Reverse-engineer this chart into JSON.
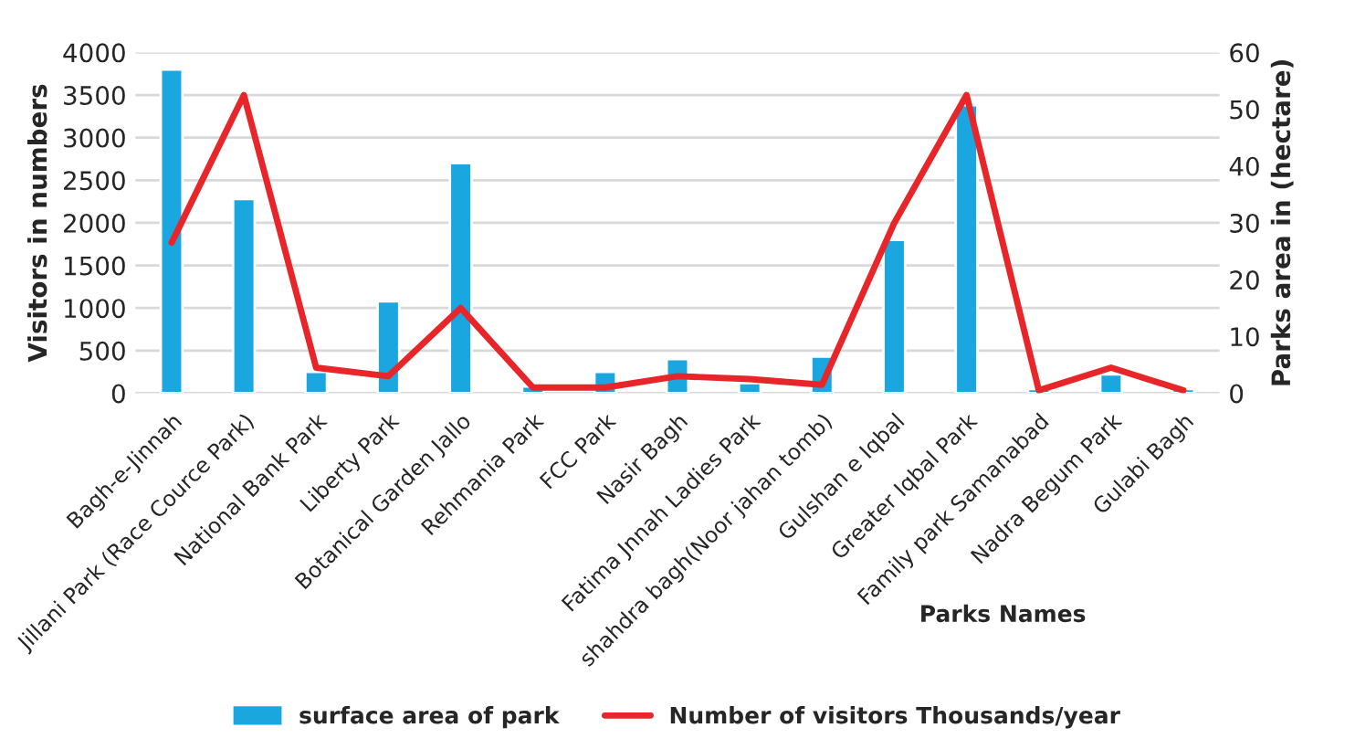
{
  "chart_data": {
    "type": "bar",
    "xlabel": "Parks Names",
    "ylabel": "Visitors in numbers",
    "y2label": "Parks area in (hectare)",
    "categories": [
      "Bagh-e-Jinnah",
      "Jillani Park (Race Cource Park)",
      "National Bank Park",
      "Liberty Park",
      "Botanical Garden Jallo",
      "Rehmania Park",
      "FCC Park",
      "Nasir Bagh",
      "Fatima Jnnah Ladies Park",
      "shahdra bagh(Noor jahan tomb)",
      "Gulshan e Iqbal",
      "Greater Iqbal Park",
      "Family park Samanabad",
      "Nadra Begum Park",
      "Gulabi Bagh"
    ],
    "series": [
      {
        "name": "surface area of park",
        "color": "#1aa7e0",
        "values": [
          3800,
          2280,
          250,
          1080,
          2700,
          80,
          250,
          400,
          120,
          430,
          1800,
          3380,
          50,
          220,
          50
        ]
      },
      {
        "name": "Number of visitors Thousands/year",
        "type": "line",
        "axis": "y2",
        "color": "#e8262a",
        "values": [
          26.5,
          52.5,
          4.5,
          3,
          15,
          1,
          1,
          3,
          2.5,
          1.5,
          30,
          52.5,
          0.5,
          4.5,
          0.5
        ]
      }
    ],
    "ylim": [
      0,
      4000
    ],
    "yticks": [
      0,
      500,
      1000,
      1500,
      2000,
      2500,
      3000,
      3500,
      4000
    ],
    "y2lim": [
      0,
      60
    ],
    "y2ticks": [
      0,
      10,
      20,
      30,
      40,
      50,
      60
    ],
    "grid": "y",
    "legend": "bottom",
    "marker": "none",
    "line_style": "solid"
  }
}
